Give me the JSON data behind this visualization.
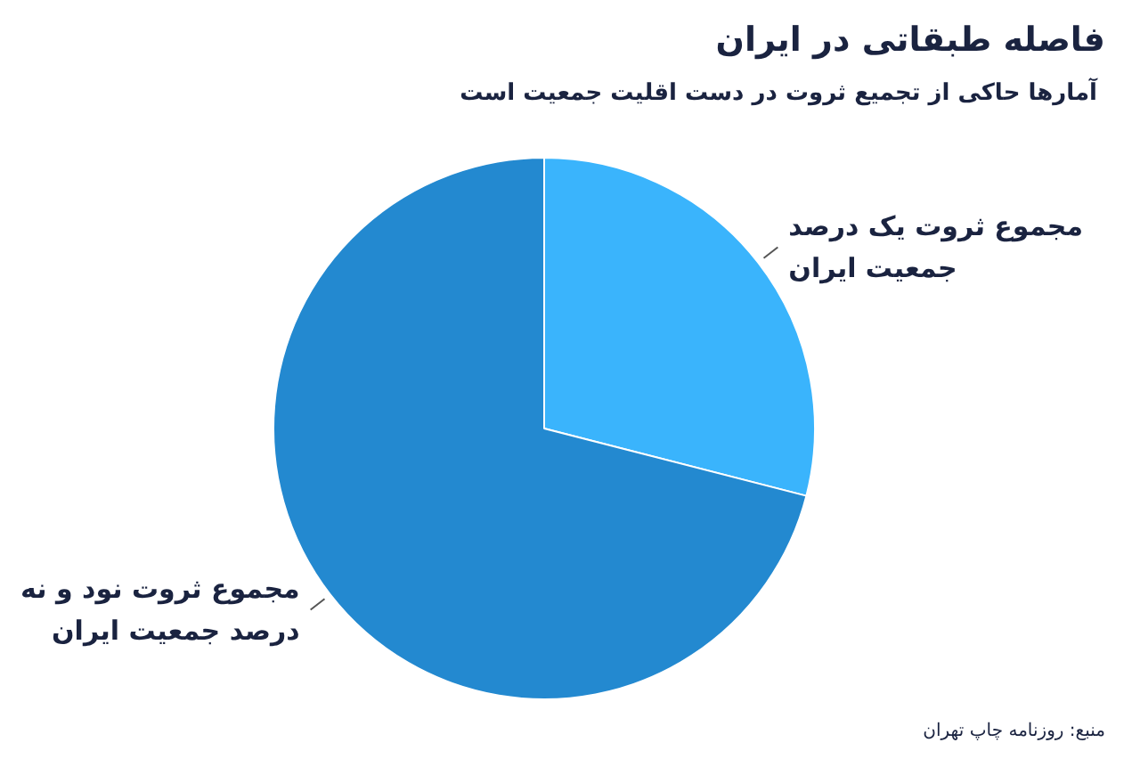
{
  "chart_data": {
    "type": "pie",
    "title": "فاصله طبقاتی در ایران",
    "subtitle": "آمارها حاکی از تجمیع  ثروت در دست اقلیت جمعیت است",
    "categories": [
      "مجموع ثروت یک درصد\nجمعیت ایران",
      "مجموع ثروت نود و نه\nدرصد جمعیت ایران"
    ],
    "values": [
      29,
      71
    ],
    "colors": [
      "#3ab4fc",
      "#2389d0"
    ],
    "annotations": [
      "منبع: روزنامه چاپ تهران"
    ]
  }
}
